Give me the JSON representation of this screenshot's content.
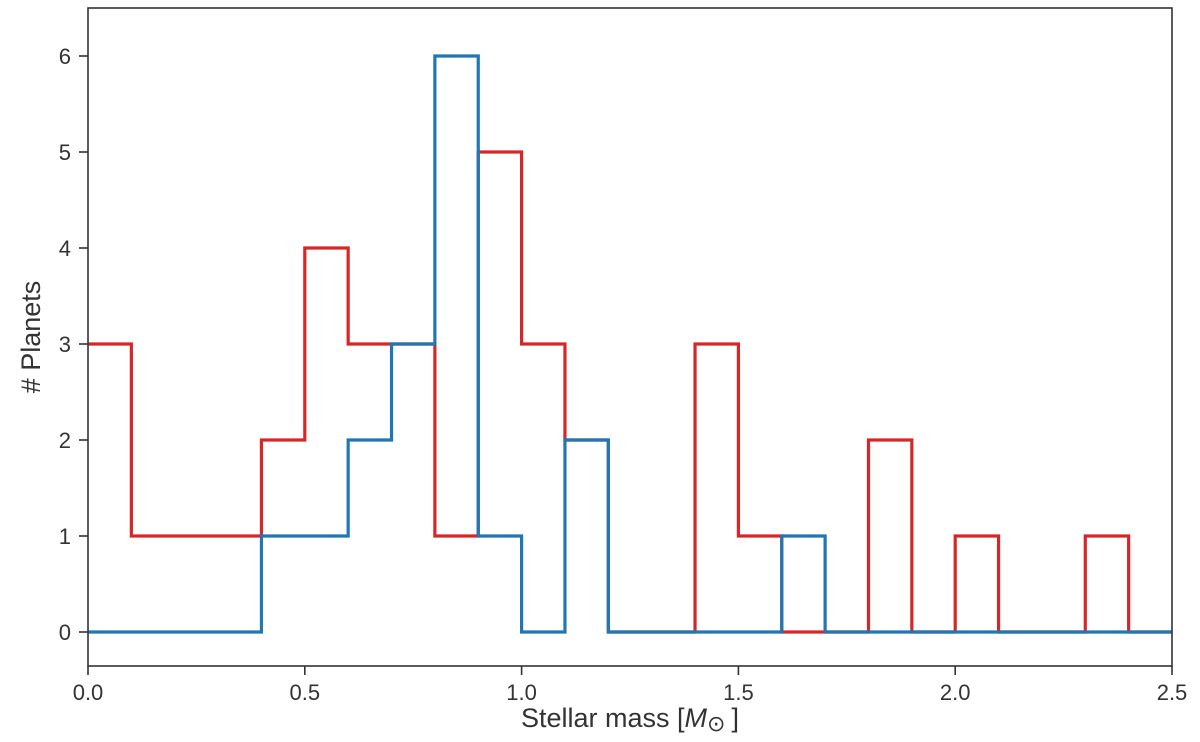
{
  "chart_data": {
    "type": "histogram",
    "xlabel_text": "Stellar mass [",
    "xlabel_symbol": "M",
    "xlabel_subscript": "⊙",
    "xlabel_end": "]",
    "ylabel": "# Planets",
    "xlim": [
      0.0,
      2.5
    ],
    "ylim": [
      0,
      6.5
    ],
    "x_ticks": [
      {
        "value": 0.0,
        "label": "0.0"
      },
      {
        "value": 0.5,
        "label": "0.5"
      },
      {
        "value": 1.0,
        "label": "1.0"
      },
      {
        "value": 1.5,
        "label": "1.5"
      },
      {
        "value": 2.0,
        "label": "2.0"
      },
      {
        "value": 2.5,
        "label": "2.5"
      }
    ],
    "y_ticks": [
      {
        "value": 0,
        "label": "0"
      },
      {
        "value": 1,
        "label": "1"
      },
      {
        "value": 2,
        "label": "2"
      },
      {
        "value": 3,
        "label": "3"
      },
      {
        "value": 4,
        "label": "4"
      },
      {
        "value": 5,
        "label": "5"
      },
      {
        "value": 6,
        "label": "6"
      }
    ],
    "bin_edges": [
      0.0,
      0.1,
      0.2,
      0.3,
      0.4,
      0.5,
      0.6,
      0.7,
      0.8,
      0.9,
      1.0,
      1.1,
      1.2,
      1.3,
      1.4,
      1.5,
      1.6,
      1.7,
      1.8,
      1.9,
      2.0,
      2.1,
      2.2,
      2.3,
      2.4,
      2.5
    ],
    "grid": false,
    "series": [
      {
        "color": "#d62728",
        "counts": [
          3,
          1,
          1,
          1,
          2,
          4,
          3,
          3,
          1,
          5,
          3,
          2,
          0,
          0,
          3,
          1,
          0,
          0,
          2,
          0,
          1,
          0,
          0,
          1,
          0
        ]
      },
      {
        "color": "#1f77b4",
        "counts": [
          0,
          0,
          0,
          0,
          1,
          1,
          2,
          3,
          6,
          1,
          0,
          2,
          0,
          0,
          0,
          0,
          1,
          0,
          0,
          0,
          0,
          0,
          0,
          0,
          0
        ]
      }
    ]
  }
}
